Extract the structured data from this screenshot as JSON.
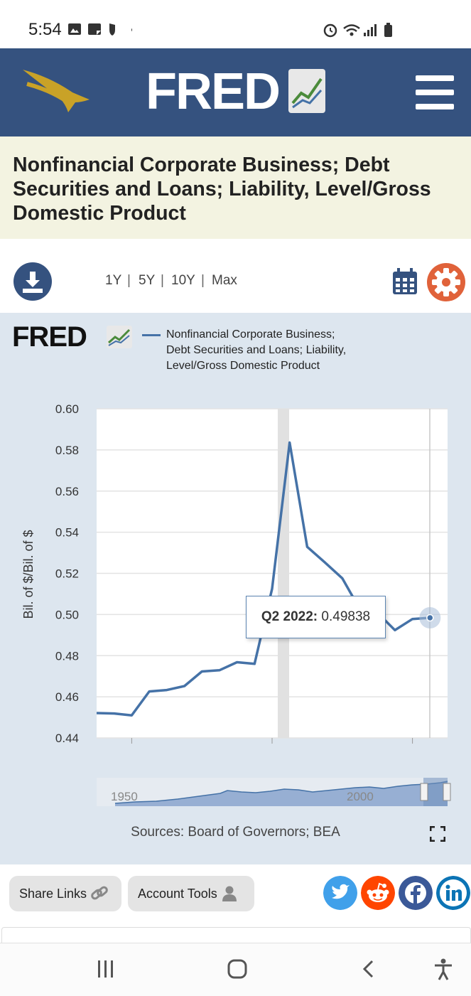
{
  "status_bar": {
    "time": "5:54"
  },
  "header": {
    "logo_text": "FRED"
  },
  "series": {
    "title": "Nonfinancial Corporate Business; Debt Securities and Loans; Liability, Level/Gross Domestic Product"
  },
  "toolbar": {
    "ranges": [
      "1Y",
      "5Y",
      "10Y",
      "Max"
    ],
    "separator": "|"
  },
  "chart": {
    "brand": "FRED",
    "legend": "Nonfinancial Corporate Business; Debt Securities and Loans; Liability, Level/Gross Domestic Product",
    "ylabel": "Bil. of $/Bil. of $",
    "tooltip_label": "Q2 2022:",
    "tooltip_value": "0.49838",
    "navigator_labels": [
      "1950",
      "2000"
    ],
    "source": "Sources: Board of Governors; BEA"
  },
  "chart_data": {
    "type": "line",
    "title": "Nonfinancial Corporate Business; Debt Securities and Loans; Liability, Level/Gross Domestic Product",
    "xlabel": "",
    "ylabel": "Bil. of $/Bil. of $",
    "ylim": [
      0.44,
      0.6
    ],
    "xlim": [
      2017.5,
      2022.5
    ],
    "y_ticks": [
      "0.60",
      "0.58",
      "0.56",
      "0.54",
      "0.52",
      "0.50",
      "0.48",
      "0.46",
      "0.44"
    ],
    "x_ticks": [
      "2018",
      "2020",
      "2022"
    ],
    "recession": [
      2020.0,
      2020.25
    ],
    "series": [
      {
        "name": "Nonfinancial Corporate Business; Debt Securities and Loans; Liability, Level/Gross Domestic Product",
        "x": [
          2017.5,
          2017.75,
          2018.0,
          2018.25,
          2018.5,
          2018.75,
          2019.0,
          2019.25,
          2019.5,
          2019.75,
          2020.0,
          2020.25,
          2020.5,
          2020.75,
          2021.0,
          2021.25,
          2021.5,
          2021.75,
          2022.0,
          2022.25
        ],
        "values": [
          0.4521,
          0.4519,
          0.451,
          0.4626,
          0.4633,
          0.4652,
          0.4723,
          0.4729,
          0.4768,
          0.476,
          0.5125,
          0.5836,
          0.5329,
          0.5254,
          0.5176,
          0.5026,
          0.5009,
          0.4924,
          0.4978,
          0.4984
        ]
      }
    ]
  },
  "footer": {
    "share_links": "Share Links",
    "account_tools": "Account Tools"
  },
  "colors": {
    "header_bg": "#35527f",
    "title_bg": "#f3f3e1",
    "chart_bg": "#dde6ef",
    "line": "#4572a7",
    "settings": "#e0623a",
    "twitter": "#40a0ea",
    "reddit": "#ff4500",
    "facebook": "#3b5998",
    "linkedin": "#0c74b5"
  }
}
